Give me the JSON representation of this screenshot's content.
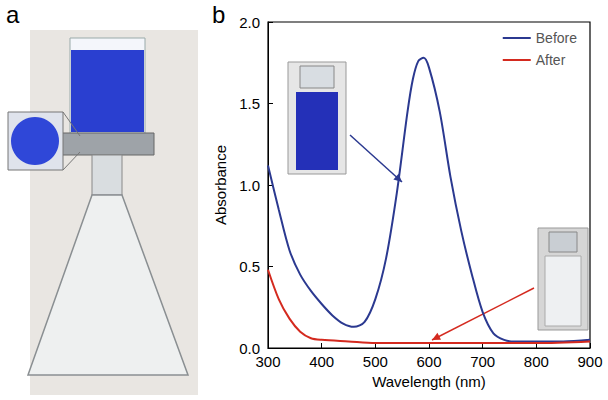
{
  "panel_a": {
    "label": "a"
  },
  "chart_data": {
    "type": "line",
    "panel_label": "b",
    "x_label": "Wavelength (nm)",
    "y_label": "Absorbance",
    "xlim": [
      300,
      900
    ],
    "xticks": [
      300,
      400,
      500,
      600,
      700,
      800,
      900
    ],
    "ylim": [
      0,
      2
    ],
    "yticks": [
      {
        "value": 0,
        "label": "0.0"
      },
      0.5,
      {
        "value": 1,
        "label": "1.0"
      },
      1.5,
      {
        "value": 2,
        "label": "2.0"
      }
    ],
    "legend": "top-right",
    "grid": false,
    "series": [
      {
        "name": "Before",
        "color": "#2b3990",
        "line_style": "solid",
        "x": [
          300,
          320,
          340,
          360,
          380,
          400,
          420,
          440,
          460,
          480,
          500,
          520,
          540,
          560,
          570,
          580,
          590,
          600,
          620,
          640,
          660,
          680,
          700,
          720,
          740,
          760,
          800,
          850,
          900
        ],
        "values": [
          1.12,
          0.85,
          0.6,
          0.45,
          0.35,
          0.27,
          0.2,
          0.15,
          0.13,
          0.16,
          0.3,
          0.55,
          0.95,
          1.45,
          1.65,
          1.76,
          1.78,
          1.72,
          1.45,
          1.05,
          0.72,
          0.45,
          0.22,
          0.09,
          0.05,
          0.04,
          0.04,
          0.04,
          0.05
        ]
      },
      {
        "name": "After",
        "color": "#d42a1f",
        "line_style": "solid",
        "x": [
          300,
          320,
          340,
          360,
          380,
          400,
          450,
          500,
          600,
          700,
          800,
          900
        ],
        "values": [
          0.48,
          0.3,
          0.18,
          0.1,
          0.06,
          0.05,
          0.04,
          0.03,
          0.03,
          0.03,
          0.03,
          0.04
        ]
      }
    ]
  }
}
